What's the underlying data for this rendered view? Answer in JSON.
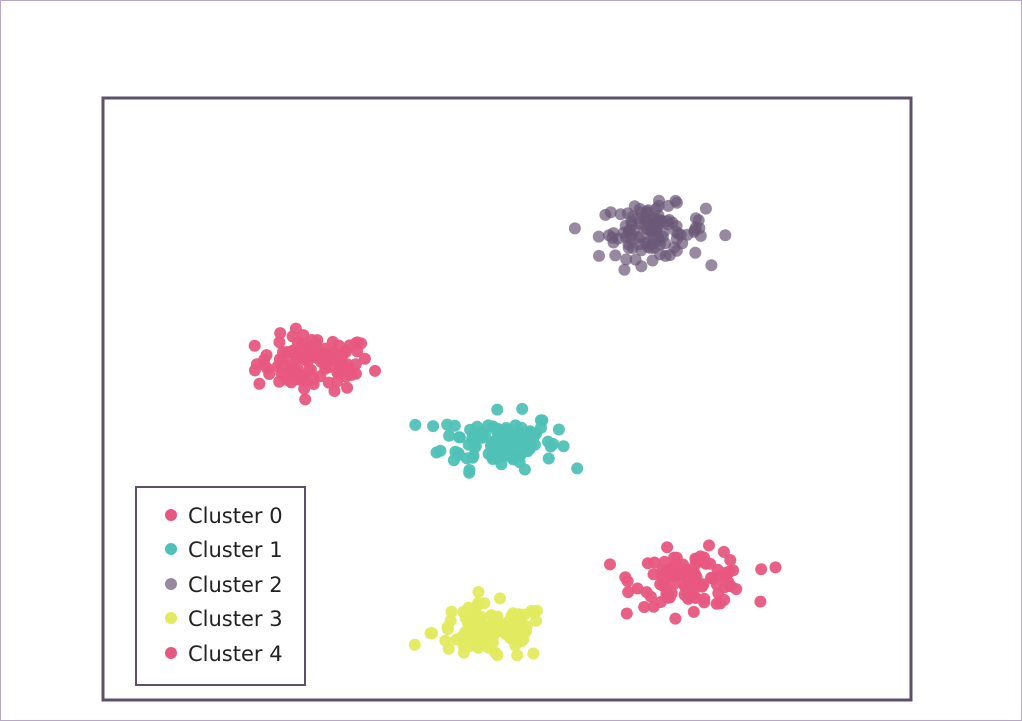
{
  "chart_data": {
    "type": "scatter",
    "title": "",
    "xlabel": "",
    "ylabel": "",
    "xlim": [
      0,
      100
    ],
    "ylim": [
      0,
      100
    ],
    "grid": false,
    "legend_position": "bottom-left",
    "series": [
      {
        "name": "Cluster 0",
        "color": "#e8577f",
        "center": [
          26,
          56
        ],
        "spread": [
          6.5,
          4.2
        ],
        "n": 110
      },
      {
        "name": "Cluster 1",
        "color": "#4fc1b6",
        "center": [
          49,
          43
        ],
        "spread": [
          6.5,
          4.2
        ],
        "n": 110
      },
      {
        "name": "Cluster 2",
        "color": "#6b5877",
        "center": [
          68,
          78
        ],
        "spread": [
          6.0,
          4.0
        ],
        "n": 110
      },
      {
        "name": "Cluster 3",
        "color": "#e2ea5f",
        "center": [
          48,
          11
        ],
        "spread": [
          6.5,
          4.2
        ],
        "n": 110
      },
      {
        "name": "Cluster 4",
        "color": "#e8577f",
        "center": [
          73,
          20
        ],
        "spread": [
          6.5,
          4.2
        ],
        "n": 110
      }
    ]
  }
}
